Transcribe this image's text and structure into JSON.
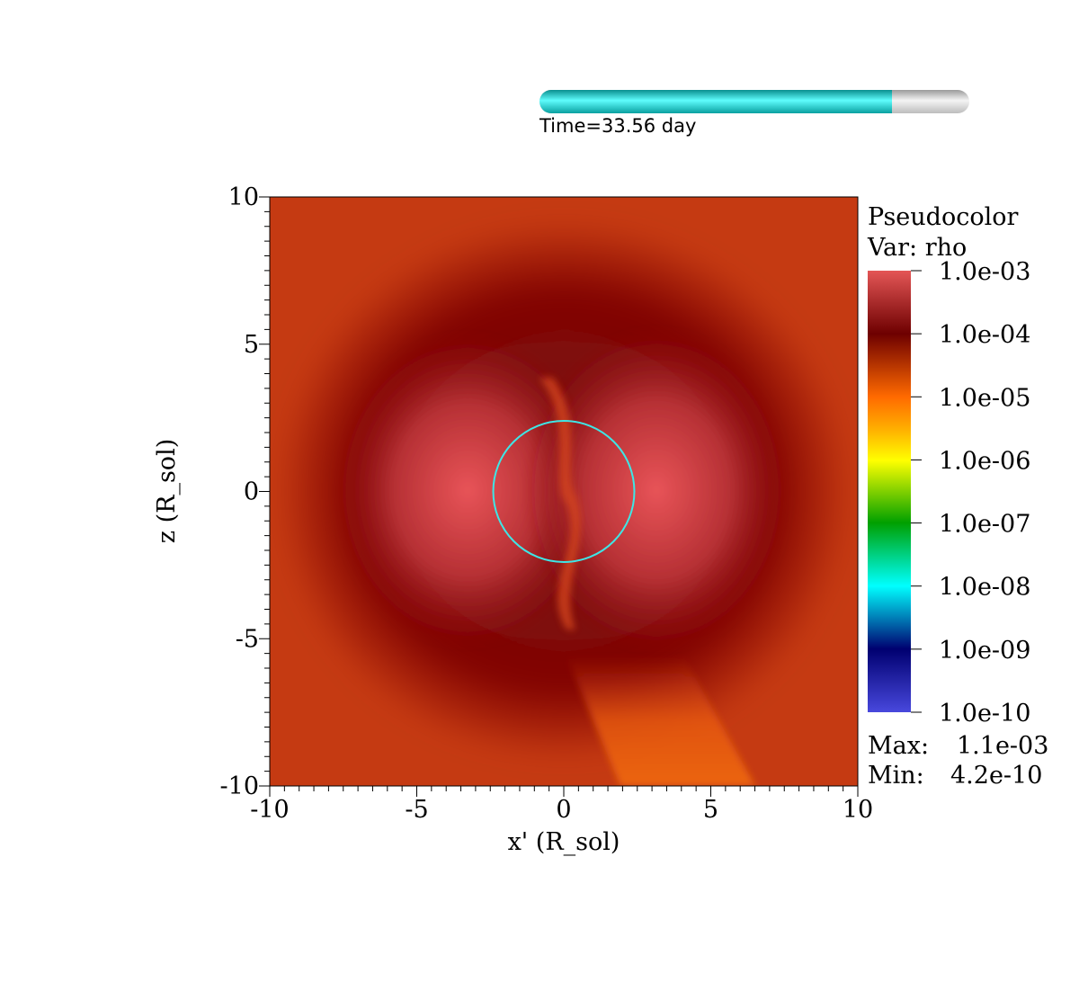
{
  "time_slider": {
    "label": "Time=33.56 day",
    "fraction": 0.82,
    "fill_color": "#00e5e5"
  },
  "chart_data": {
    "type": "heatmap",
    "plot_type": "Pseudocolor",
    "variable": "Var: rho",
    "xlabel": "x' (R_sol)",
    "ylabel": "z (R_sol)",
    "xlim": [
      -10,
      10
    ],
    "ylim": [
      -10,
      10
    ],
    "x_ticks": [
      "-10",
      "-5",
      "0",
      "5",
      "10"
    ],
    "y_ticks": [
      "10",
      "5",
      "0",
      "-5",
      "-10"
    ],
    "color_scale": "log",
    "legend": {
      "title": "Pseudocolor",
      "var_label": "Var: rho",
      "ticks": [
        "1.0e-03",
        "1.0e-04",
        "1.0e-05",
        "1.0e-06",
        "1.0e-07",
        "1.0e-08",
        "1.0e-09",
        "1.0e-10"
      ],
      "max_label": "Max:",
      "max_value": "1.1e-03",
      "min_label": "Min:",
      "min_value": "4.2e-10",
      "colors": [
        "#e05050",
        "#6e0000",
        "#ff6a00",
        "#ffff00",
        "#00a000",
        "#00ffff",
        "#000070",
        "#4444dd"
      ]
    },
    "overlay_circle": {
      "center": [
        0,
        0
      ],
      "radius": 2.4,
      "color": "#3ee6e6"
    },
    "field_colors": {
      "background": "#c53a12",
      "shell": "#820808",
      "lobes": "#e24f53",
      "jet": "#e85a10"
    }
  }
}
